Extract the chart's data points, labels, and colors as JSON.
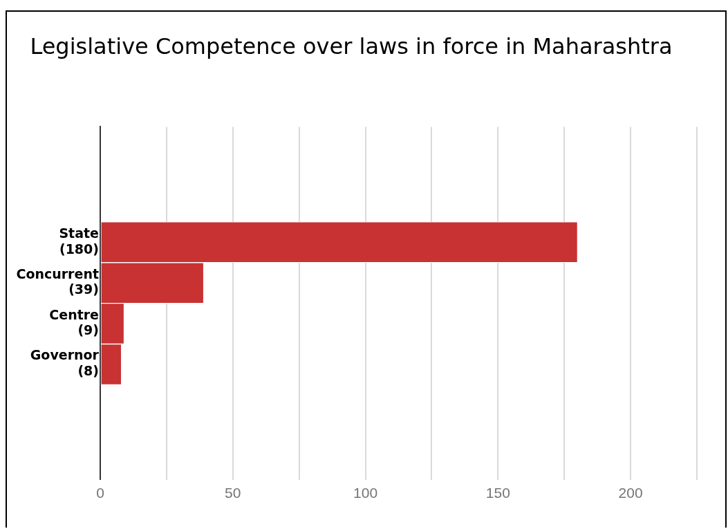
{
  "chart_data": {
    "type": "bar",
    "orientation": "horizontal",
    "title": "Legislative Competence over laws in force in Maharashtra",
    "categories": [
      "State\n(180)",
      "Concurrent\n(39)",
      "Centre\n(9)",
      "Governor\n(8)"
    ],
    "values": [
      180,
      39,
      9,
      8
    ],
    "color": "#c83232",
    "xlim": [
      0,
      225
    ],
    "xticks": [
      0,
      {
        "value": 25,
        "label": null
      },
      50,
      {
        "value": 75,
        "label": null
      },
      100,
      {
        "value": 125,
        "label": null
      },
      150,
      {
        "value": 175,
        "label": null
      },
      200,
      {
        "value": 225,
        "label": null
      }
    ],
    "grid": "x"
  }
}
